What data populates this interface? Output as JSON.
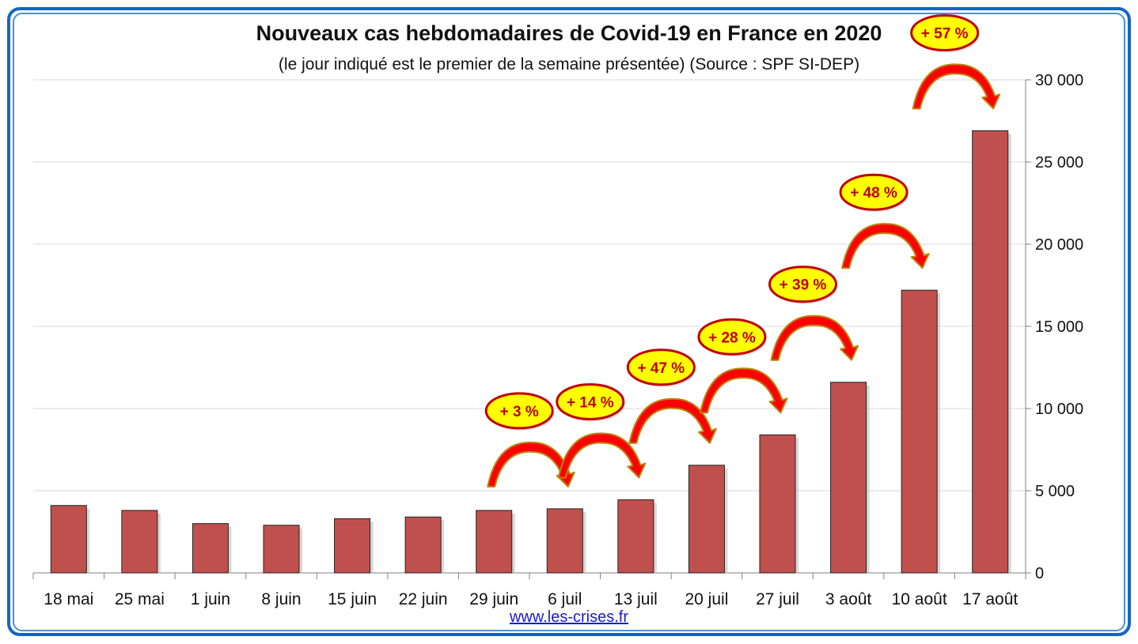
{
  "chart_data": {
    "type": "bar",
    "title": "Nouveaux cas hebdomadaires de Covid-19  en France en 2020",
    "subtitle": "(le jour indiqué est le premier de la semaine présentée) (Source : SPF SI-DEP)",
    "categories": [
      "18 mai",
      "25 mai",
      "1 juin",
      "8 juin",
      "15 juin",
      "22 juin",
      "29 juin",
      "6 juil",
      "13 juil",
      "20 juil",
      "27 juil",
      "3 août",
      "10 août",
      "17 août"
    ],
    "values": [
      4100,
      3800,
      3000,
      2900,
      3300,
      3400,
      3800,
      3900,
      4450,
      6550,
      8400,
      11600,
      17200,
      26900
    ],
    "ylim": [
      0,
      30000
    ],
    "yticks": [
      0,
      5000,
      10000,
      15000,
      20000,
      25000,
      30000
    ],
    "ytick_labels": [
      "0",
      "5 000",
      "10 000",
      "15 000",
      "20 000",
      "25 000",
      "30 000"
    ],
    "y_axis_side": "right",
    "grid": true,
    "annotations": [
      {
        "from": 6,
        "to": 7,
        "label": "+ 3 %"
      },
      {
        "from": 7,
        "to": 8,
        "label": "+ 14 %"
      },
      {
        "from": 8,
        "to": 9,
        "label": "+ 47 %"
      },
      {
        "from": 9,
        "to": 10,
        "label": "+ 28 %"
      },
      {
        "from": 10,
        "to": 11,
        "label": "+ 39 %"
      },
      {
        "from": 11,
        "to": 12,
        "label": "+ 48 %"
      },
      {
        "from": 12,
        "to": 13,
        "label": "+ 57 %"
      }
    ],
    "colors": {
      "bar": "#c0504d",
      "grid": "#d9d9d9",
      "axis": "#808080",
      "badge_fill": "#ffff00",
      "badge_stroke": "#c00000",
      "arrow_fill": "#ff0000",
      "arrow_stroke": "#b8860b"
    }
  },
  "source_link": "www.les-crises.fr"
}
